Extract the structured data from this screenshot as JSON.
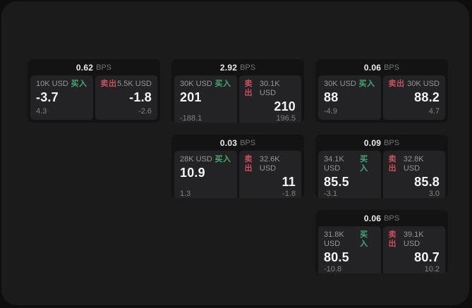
{
  "labels": {
    "buy": "买入",
    "sell": "卖出",
    "bps_unit": "BPS"
  },
  "colors": {
    "window_bg": "#1b1b1c",
    "card_bg": "#131314",
    "panel_bg": "#232325",
    "buy_green": "#45aa72",
    "sell_red": "#cb4f5c"
  },
  "cards": [
    {
      "bps": "0.62",
      "buy": {
        "amount": "10K USD",
        "price": "-3.7",
        "delta": "4.3"
      },
      "sell": {
        "amount": "5.5K USD",
        "price": "-1.8",
        "delta": "-2.6"
      }
    },
    {
      "bps": "2.92",
      "buy": {
        "amount": "30K USD",
        "price": "201",
        "delta": "-188.1"
      },
      "sell": {
        "amount": "30.1K USD",
        "price": "210",
        "delta": "196.5"
      }
    },
    {
      "bps": "0.06",
      "buy": {
        "amount": "30K USD",
        "price": "88",
        "delta": "-4.9"
      },
      "sell": {
        "amount": "30K USD",
        "price": "88.2",
        "delta": "4.7"
      }
    },
    {
      "bps": "0.03",
      "buy": {
        "amount": "28K USD",
        "price": "10.9",
        "delta": "1.3"
      },
      "sell": {
        "amount": "32.6K USD",
        "price": "11",
        "delta": "-1.8"
      }
    },
    {
      "bps": "0.09",
      "buy": {
        "amount": "34.1K USD",
        "price": "85.5",
        "delta": "-3.1"
      },
      "sell": {
        "amount": "32.8K USD",
        "price": "85.8",
        "delta": "3.0"
      }
    },
    {
      "bps": "0.06",
      "buy": {
        "amount": "31.8K USD",
        "price": "80.5",
        "delta": "-10.8"
      },
      "sell": {
        "amount": "39.1K USD",
        "price": "80.7",
        "delta": "10.2"
      }
    }
  ]
}
